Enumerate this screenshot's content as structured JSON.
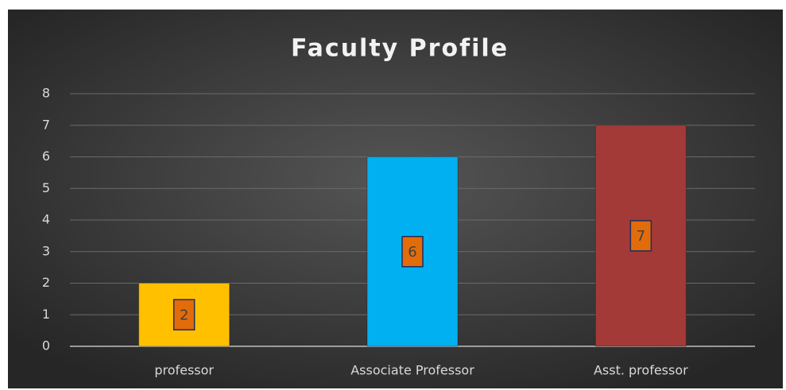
{
  "chart_data": {
    "type": "bar",
    "title": "Faculty Profile",
    "categories": [
      "professor",
      "Associate Professor",
      "Asst. professor"
    ],
    "values": [
      2,
      6,
      7
    ],
    "colors": [
      "#ffc000",
      "#00b0f0",
      "#a33a37"
    ],
    "ylim": [
      0,
      8
    ],
    "yticks": [
      0,
      1,
      2,
      3,
      4,
      5,
      6,
      7,
      8
    ],
    "grid": true,
    "data_labels": true
  }
}
